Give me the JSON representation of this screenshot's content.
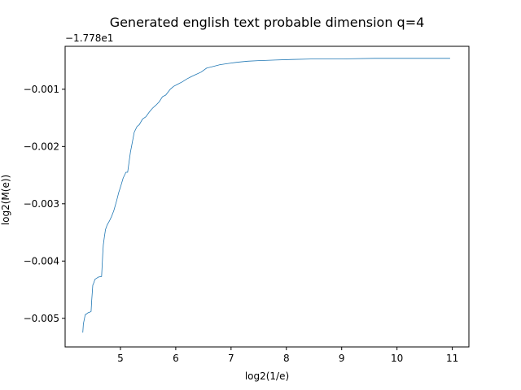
{
  "chart_data": {
    "type": "line",
    "title": "Generated english text probable dimension q=4",
    "xlabel": "log2(1/e)",
    "ylabel": "log2(M(e))",
    "offset_text": "−1.778e1",
    "y_offset": -17.78,
    "xlim": [
      4.0,
      11.3
    ],
    "ylim": [
      -0.0055,
      -0.00025
    ],
    "x_ticks": [
      5,
      6,
      7,
      8,
      9,
      10,
      11
    ],
    "x_tick_labels": [
      "5",
      "6",
      "7",
      "8",
      "9",
      "10",
      "11"
    ],
    "y_ticks": [
      -0.001,
      -0.002,
      -0.003,
      -0.004,
      -0.005
    ],
    "y_tick_labels": [
      "−0.001",
      "−0.002",
      "−0.003",
      "−0.004",
      "−0.005"
    ],
    "grid": false,
    "line_color": "#1f77b4",
    "series": [
      {
        "x": [
          4.32,
          4.33,
          4.35,
          4.36,
          4.37,
          4.38,
          4.42,
          4.43,
          4.47,
          4.48,
          4.5,
          4.51,
          4.54,
          4.57,
          4.6,
          4.66,
          4.68,
          4.69,
          4.71,
          4.73,
          4.76,
          4.8,
          4.84,
          4.88,
          4.93,
          4.97,
          5.01,
          5.05,
          5.1,
          5.13,
          5.18,
          5.22,
          5.25,
          5.3,
          5.34,
          5.4,
          5.46,
          5.52,
          5.58,
          5.64,
          5.7,
          5.76,
          5.82,
          5.9,
          5.96,
          6.04,
          6.12,
          6.2,
          6.28,
          6.37,
          6.46,
          6.56,
          6.68,
          6.8,
          6.95,
          7.1,
          7.3,
          7.5,
          7.8,
          8.1,
          8.5,
          9.0,
          9.6,
          10.3,
          10.96
        ],
        "y": [
          -0.00525,
          -0.0051,
          -0.005,
          -0.00495,
          -0.00493,
          -0.00493,
          -0.0049,
          -0.0049,
          -0.00488,
          -0.0047,
          -0.00442,
          -0.0044,
          -0.00432,
          -0.0043,
          -0.00428,
          -0.00427,
          -0.00388,
          -0.00372,
          -0.00358,
          -0.00345,
          -0.00337,
          -0.0033,
          -0.00322,
          -0.00312,
          -0.00295,
          -0.0028,
          -0.00268,
          -0.00255,
          -0.00245,
          -0.00245,
          -0.0021,
          -0.0019,
          -0.00175,
          -0.00165,
          -0.00162,
          -0.00152,
          -0.00148,
          -0.0014,
          -0.00133,
          -0.00128,
          -0.00122,
          -0.00113,
          -0.0011,
          -0.001,
          -0.00095,
          -0.00091,
          -0.00087,
          -0.00082,
          -0.00078,
          -0.00074,
          -0.0007,
          -0.00063,
          -0.0006,
          -0.00057,
          -0.00055,
          -0.00053,
          -0.00051,
          -0.0005,
          -0.00049,
          -0.00048,
          -0.00047,
          -0.00047,
          -0.00046,
          -0.00046,
          -0.00046
        ]
      }
    ]
  }
}
